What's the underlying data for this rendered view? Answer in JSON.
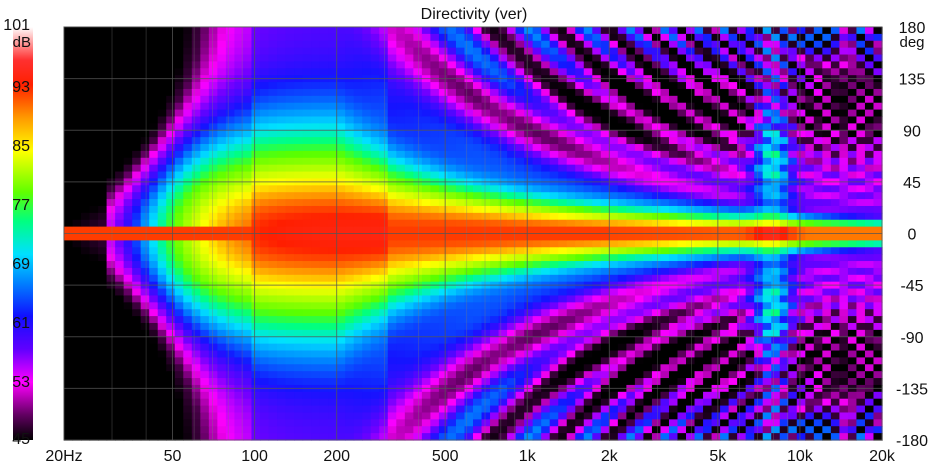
{
  "chart_data": {
    "type": "heatmap",
    "title": "Directivity (ver)",
    "colorbar": {
      "unit": "dB",
      "min": 45,
      "max": 101,
      "tick_labels": [
        "101",
        "93",
        "85",
        "77",
        "69",
        "61",
        "53",
        "45"
      ],
      "tick_values": [
        101,
        93,
        85,
        77,
        69,
        61,
        53,
        45
      ]
    },
    "x_axis": {
      "scale": "log",
      "range": [
        20,
        20000
      ],
      "unit": "Hz",
      "tick_values": [
        20,
        50,
        100,
        200,
        500,
        1000,
        2000,
        5000,
        10000,
        20000
      ],
      "tick_labels": [
        "20Hz",
        "50",
        "100",
        "200",
        "500",
        "1k",
        "2k",
        "5k",
        "10k",
        "20k"
      ],
      "minor_gridlines": [
        30,
        40,
        60,
        70,
        80,
        90,
        300,
        400,
        600,
        700,
        800,
        900,
        3000,
        4000,
        6000,
        7000,
        8000,
        9000
      ]
    },
    "y_axis": {
      "side": "right",
      "unit": "deg",
      "range": [
        -180,
        180
      ],
      "tick_values": [
        180,
        135,
        90,
        45,
        0,
        -45,
        -90,
        -135,
        -180
      ],
      "tick_labels": [
        "180",
        "135",
        "90",
        "45",
        "0",
        "-45",
        "-90",
        "-135",
        "-180"
      ]
    },
    "grid": true,
    "features": {
      "on_axis_level_db": 92,
      "main_lobe_peak_hz": [
        100,
        300
      ],
      "null_bands_deg": [
        90,
        135
      ],
      "hf_lobe_hz": [
        7000,
        9000
      ]
    }
  }
}
